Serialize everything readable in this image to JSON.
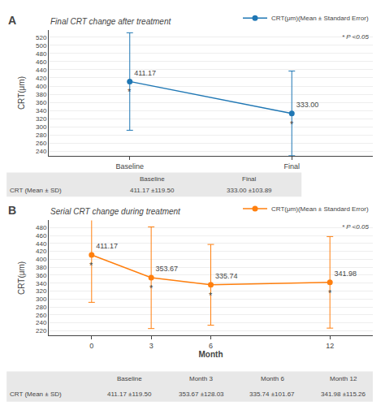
{
  "chart_data": [
    {
      "type": "line",
      "label": "A",
      "title": "Final CRT change after treatment",
      "ylabel": "CRT(μm)",
      "categories": [
        "Baseline",
        "Final"
      ],
      "series": [
        {
          "name": "CRT(μm)(Mean ± Standard Error)",
          "values": [
            411.17,
            333.0
          ],
          "value_labels": [
            "411.17",
            "333.00"
          ],
          "errors": [
            119.5,
            103.89
          ],
          "point_marks": [
            "*",
            "*"
          ]
        }
      ],
      "marker": "circle",
      "ylim": [
        228,
        538
      ],
      "yticks": [
        240,
        260,
        280,
        300,
        320,
        340,
        360,
        380,
        400,
        420,
        440,
        460,
        480,
        500,
        520
      ],
      "grid": true,
      "legend": "upper right",
      "data_labels": true,
      "note": "* P <0.05",
      "table": {
        "columns": [
          "Baseline",
          "Final"
        ],
        "row_label": "CRT (Mean ± SD)",
        "cells": [
          "411.17 ±119.50",
          "333.00 ±103.89"
        ]
      }
    },
    {
      "type": "line",
      "label": "B",
      "title": "Serial CRT change during treatment",
      "ylabel": "CRT(μm)",
      "xlabel": "Month",
      "x": [
        0,
        3,
        6,
        12
      ],
      "xlim": [
        -2.16,
        14.16
      ],
      "xticks": [
        0,
        3,
        6,
        12
      ],
      "series": [
        {
          "name": "CRT(μm)(Mean ± Standard Error)",
          "values": [
            411.17,
            353.67,
            335.74,
            341.98
          ],
          "value_labels": [
            "411.17",
            "353.67",
            "335.74",
            "341.98"
          ],
          "errors": [
            119.5,
            128.03,
            101.67,
            115.26
          ],
          "point_marks": [
            "*",
            "*",
            "*",
            "*"
          ]
        }
      ],
      "marker": "circle",
      "ylim": [
        208,
        498
      ],
      "yticks": [
        220,
        240,
        260,
        280,
        300,
        320,
        340,
        360,
        380,
        400,
        420,
        440,
        460,
        480
      ],
      "grid": true,
      "legend": "upper right",
      "data_labels": true,
      "note": "* P <0.05",
      "table": {
        "columns": [
          "Baseline",
          "Month 3",
          "Month 6",
          "Month 12"
        ],
        "row_label": "CRT (Mean ± SD)",
        "cells": [
          "411.17 ±119.50",
          "353.67 ±128.03",
          "335.74 ±101.67",
          "341.98 ±115.26"
        ]
      }
    }
  ]
}
